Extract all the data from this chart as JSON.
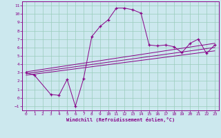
{
  "xlabel": "Windchill (Refroidissement éolien,°C)",
  "bg_color": "#cce8ee",
  "line_color": "#880088",
  "grid_color": "#99ccbb",
  "xlim": [
    -0.5,
    23.5
  ],
  "ylim": [
    -1.5,
    11.5
  ],
  "xticks": [
    0,
    1,
    2,
    3,
    4,
    5,
    6,
    7,
    8,
    9,
    10,
    11,
    12,
    13,
    14,
    15,
    16,
    17,
    18,
    19,
    20,
    21,
    22,
    23
  ],
  "yticks": [
    -1,
    0,
    1,
    2,
    3,
    4,
    5,
    6,
    7,
    8,
    9,
    10,
    11
  ],
  "series1_x": [
    0,
    1,
    3,
    4,
    5,
    6,
    7,
    8,
    9,
    10,
    11,
    12,
    13,
    14,
    15,
    16,
    17,
    18,
    19,
    20,
    21,
    22,
    23
  ],
  "series1_y": [
    3.0,
    2.7,
    0.4,
    0.3,
    2.2,
    -1.0,
    2.3,
    7.3,
    8.5,
    9.3,
    10.7,
    10.7,
    10.5,
    10.1,
    6.3,
    6.2,
    6.3,
    6.1,
    5.4,
    6.5,
    7.0,
    5.3,
    6.3
  ],
  "series2_x": [
    0,
    23
  ],
  "series2_y": [
    3.1,
    6.5
  ],
  "series3_x": [
    0,
    23
  ],
  "series3_y": [
    2.9,
    6.0
  ],
  "series4_x": [
    0,
    23
  ],
  "series4_y": [
    2.7,
    5.6
  ]
}
